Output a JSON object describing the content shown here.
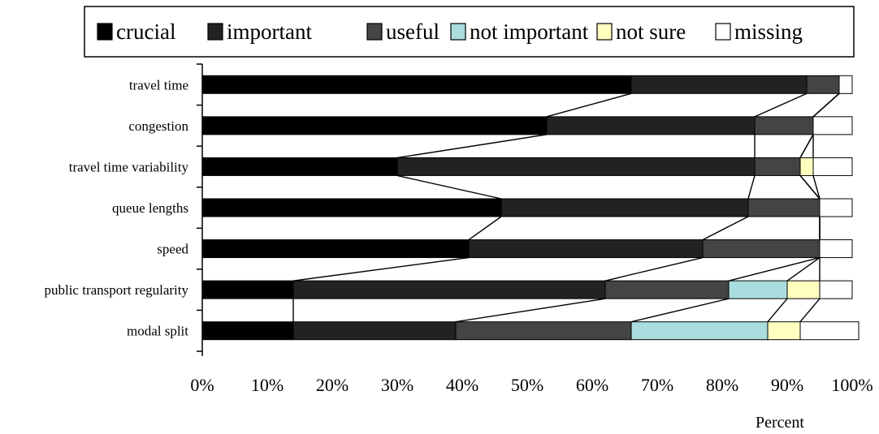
{
  "chart_data": {
    "type": "bar",
    "orientation": "horizontal",
    "stacked": "percent",
    "categories": [
      "travel time",
      "congestion",
      "travel time variability",
      "queue lengths",
      "speed",
      "public transport regularity",
      "modal split"
    ],
    "series": [
      {
        "name": "crucial",
        "color": "#000000",
        "values": [
          66,
          53,
          30,
          46,
          41,
          14,
          14
        ]
      },
      {
        "name": "important",
        "color": "#222222",
        "values": [
          27,
          32,
          55,
          38,
          36,
          48,
          25
        ]
      },
      {
        "name": "useful",
        "color": "#444444",
        "values": [
          5,
          9,
          7,
          11,
          18,
          19,
          27
        ]
      },
      {
        "name": "not important",
        "color": "#aadddd",
        "values": [
          0,
          0,
          0,
          0,
          0,
          9,
          21
        ]
      },
      {
        "name": "not sure",
        "color": "#ffffc0",
        "values": [
          0,
          0,
          2,
          0,
          0,
          5,
          5
        ]
      },
      {
        "name": "missing",
        "color": "#ffffff",
        "values": [
          2,
          6,
          6,
          5,
          5,
          5,
          9
        ]
      }
    ],
    "series_lines": true,
    "xlim": [
      0,
      100
    ],
    "x_ticks": [
      "0%",
      "10%",
      "20%",
      "30%",
      "40%",
      "50%",
      "60%",
      "70%",
      "80%",
      "90%",
      "100%"
    ],
    "xlabel": "Percent",
    "ylabel": "",
    "title": "",
    "legend_position": "top"
  }
}
